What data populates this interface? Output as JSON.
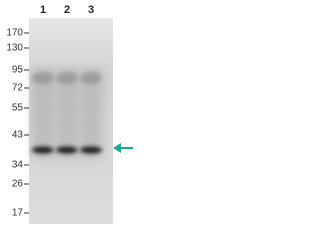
{
  "lanes": [
    "1",
    "2",
    "3"
  ],
  "markers": [
    "170",
    "130",
    "95",
    "72",
    "55",
    "43",
    "34",
    "26",
    "17"
  ]
}
